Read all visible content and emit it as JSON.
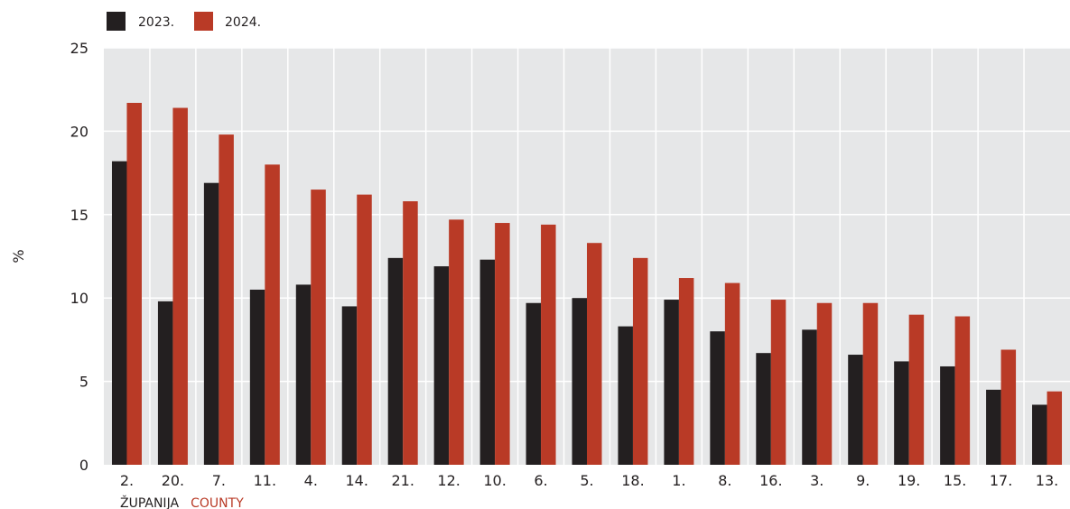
{
  "chart_data": {
    "type": "bar",
    "categories": [
      "2.",
      "20.",
      "7.",
      "11.",
      "4.",
      "14.",
      "21.",
      "12.",
      "10.",
      "6.",
      "5.",
      "18.",
      "1.",
      "8.",
      "16.",
      "3.",
      "9.",
      "19.",
      "15.",
      "17.",
      "13."
    ],
    "series": [
      {
        "name": "2023.",
        "color": "#231f20",
        "values": [
          18.2,
          9.8,
          16.9,
          10.5,
          10.8,
          9.5,
          12.4,
          11.9,
          12.3,
          9.7,
          10.0,
          8.3,
          9.9,
          8.0,
          6.7,
          8.1,
          6.6,
          6.2,
          5.9,
          4.5,
          3.6
        ]
      },
      {
        "name": "2024.",
        "color": "#b93a26",
        "values": [
          21.7,
          21.4,
          19.8,
          18.0,
          16.5,
          16.2,
          15.8,
          14.7,
          14.5,
          14.4,
          13.3,
          12.4,
          11.2,
          10.9,
          9.9,
          9.7,
          9.7,
          9.0,
          8.9,
          6.9,
          4.4
        ]
      }
    ],
    "yticks": [
      "0",
      "5",
      "10",
      "15",
      "20",
      "25"
    ],
    "ylim": [
      0,
      25
    ],
    "ylabel": "%",
    "xlabel": {
      "hr": "ŽUPANIJA",
      "en": "COUNTY"
    },
    "legend_position": "top-left",
    "grid": true,
    "plot_background": "#e6e7e8",
    "grid_color": "#ffffff"
  }
}
